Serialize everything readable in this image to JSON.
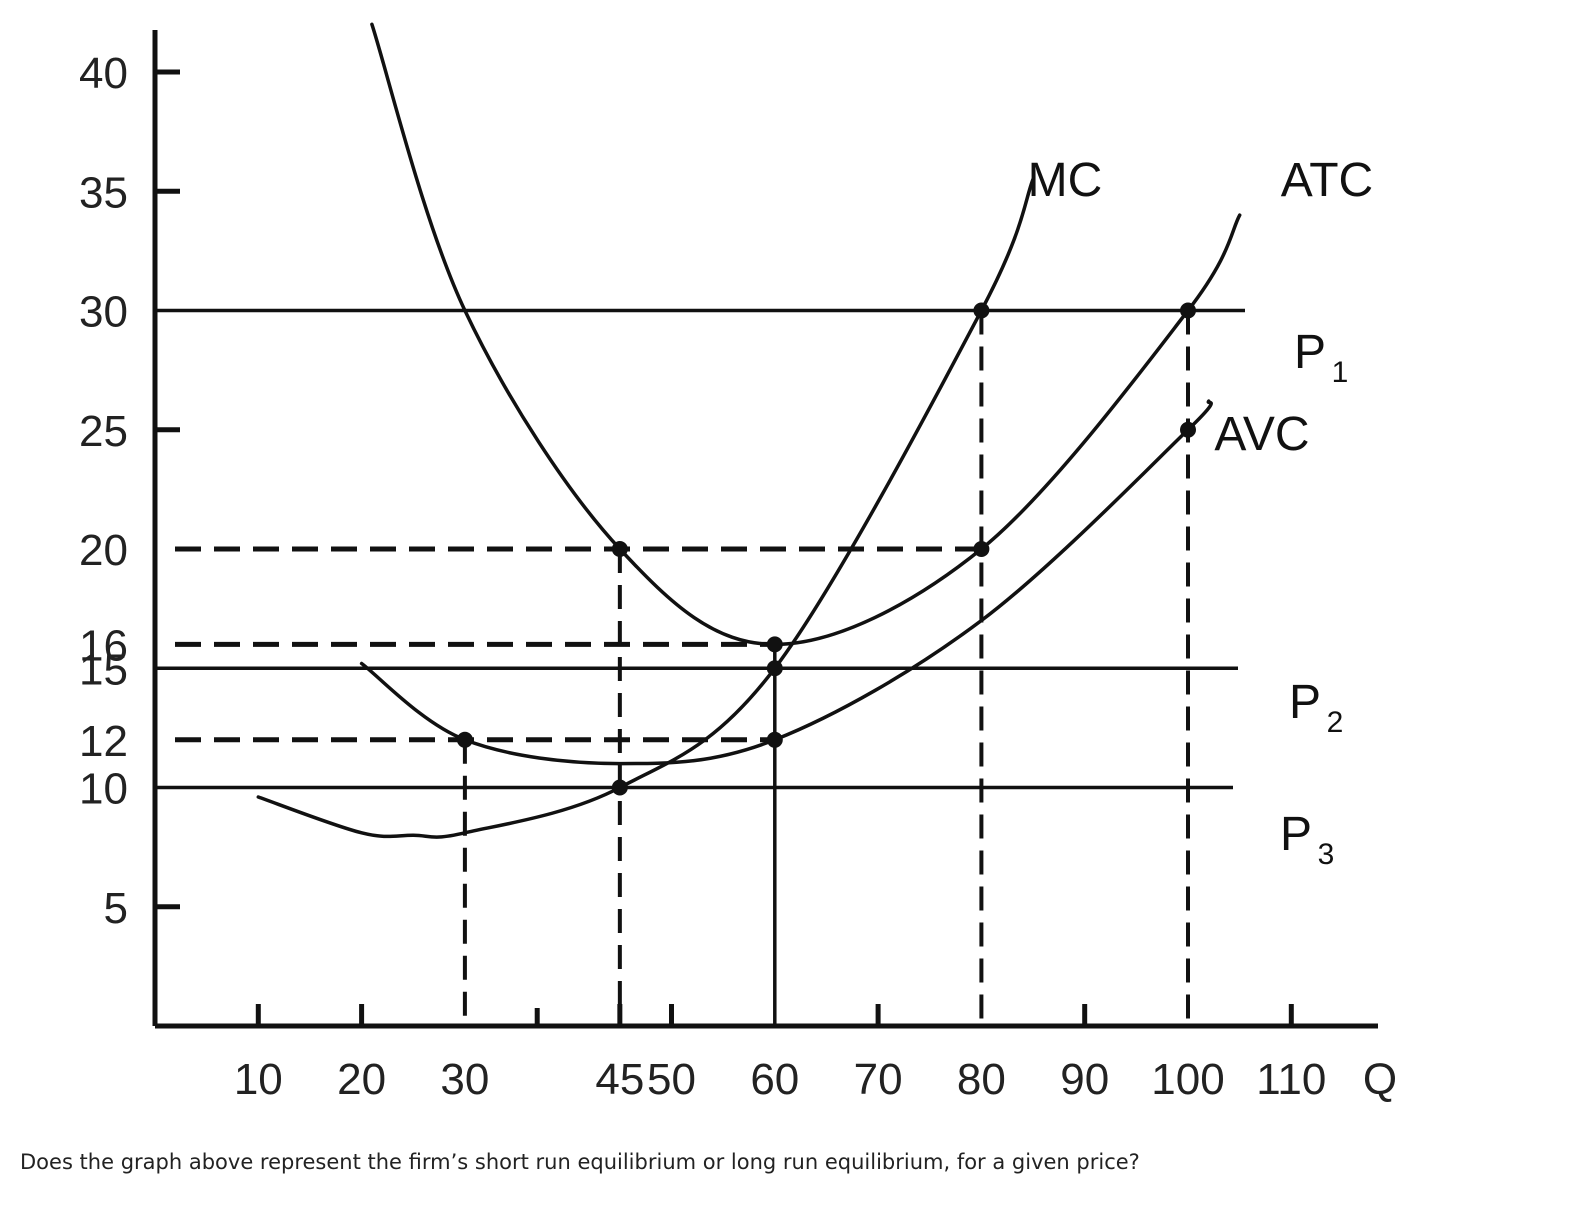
{
  "question": "Does the graph above represent the firm’s short run equilibrium or long run equilibrium, for a given price?",
  "chart_data": {
    "type": "line",
    "xlabel": "Q",
    "ylabel": "",
    "xlim": [
      0,
      118
    ],
    "ylim": [
      0,
      42
    ],
    "x_ticks": [
      10,
      20,
      30,
      45,
      50,
      60,
      70,
      80,
      90,
      100,
      110
    ],
    "x_tick_labels": [
      "10",
      "20",
      "30",
      "45",
      "50",
      "60",
      "70",
      "80",
      "90",
      "100",
      "110"
    ],
    "y_ticks": [
      5,
      10,
      12,
      15,
      16,
      20,
      25,
      30,
      35,
      40
    ],
    "y_tick_labels": [
      "5",
      "10",
      "12",
      "15",
      "16",
      "20",
      "25",
      "30",
      "35",
      "40"
    ],
    "series": [
      {
        "name": "MC",
        "x": [
          10,
          20,
          25,
          30,
          45,
          60,
          80,
          85
        ],
        "y": [
          9.6,
          8.1,
          8.0,
          8.1,
          10,
          15,
          30,
          35.5
        ]
      },
      {
        "name": "ATC",
        "x": [
          21,
          30,
          45,
          60,
          80,
          100,
          105
        ],
        "y": [
          42,
          30,
          20,
          16,
          20,
          30,
          34
        ]
      },
      {
        "name": "AVC",
        "x": [
          20,
          30,
          45,
          60,
          80,
          100,
          102
        ],
        "y": [
          15.2,
          12,
          11,
          12,
          17,
          25,
          26.2
        ]
      }
    ],
    "price_lines": [
      {
        "name": "P",
        "subscript": "1",
        "y": 30
      },
      {
        "name": "P",
        "subscript": "2",
        "y": 15
      },
      {
        "name": "P",
        "subscript": "3",
        "y": 10
      }
    ],
    "points": [
      {
        "x": 80,
        "y": 30
      },
      {
        "x": 100,
        "y": 30
      },
      {
        "x": 45,
        "y": 20
      },
      {
        "x": 80,
        "y": 20
      },
      {
        "x": 60,
        "y": 16
      },
      {
        "x": 60,
        "y": 15
      },
      {
        "x": 30,
        "y": 12
      },
      {
        "x": 60,
        "y": 12
      },
      {
        "x": 45,
        "y": 10
      },
      {
        "x": 100,
        "y": 25
      }
    ],
    "dashed_horizontal": [
      {
        "y": 20,
        "x_end": 80
      },
      {
        "y": 16,
        "x_end": 60
      },
      {
        "y": 12,
        "x_end": 60
      }
    ],
    "dashed_vertical": [
      {
        "x": 30,
        "y_end": 12
      },
      {
        "x": 45,
        "y_end": 20
      },
      {
        "x": 80,
        "y_end": 30
      },
      {
        "x": 100,
        "y_end": 30
      }
    ],
    "solid_vertical": [
      {
        "x": 60,
        "y_end": 16
      }
    ],
    "grid": false
  }
}
